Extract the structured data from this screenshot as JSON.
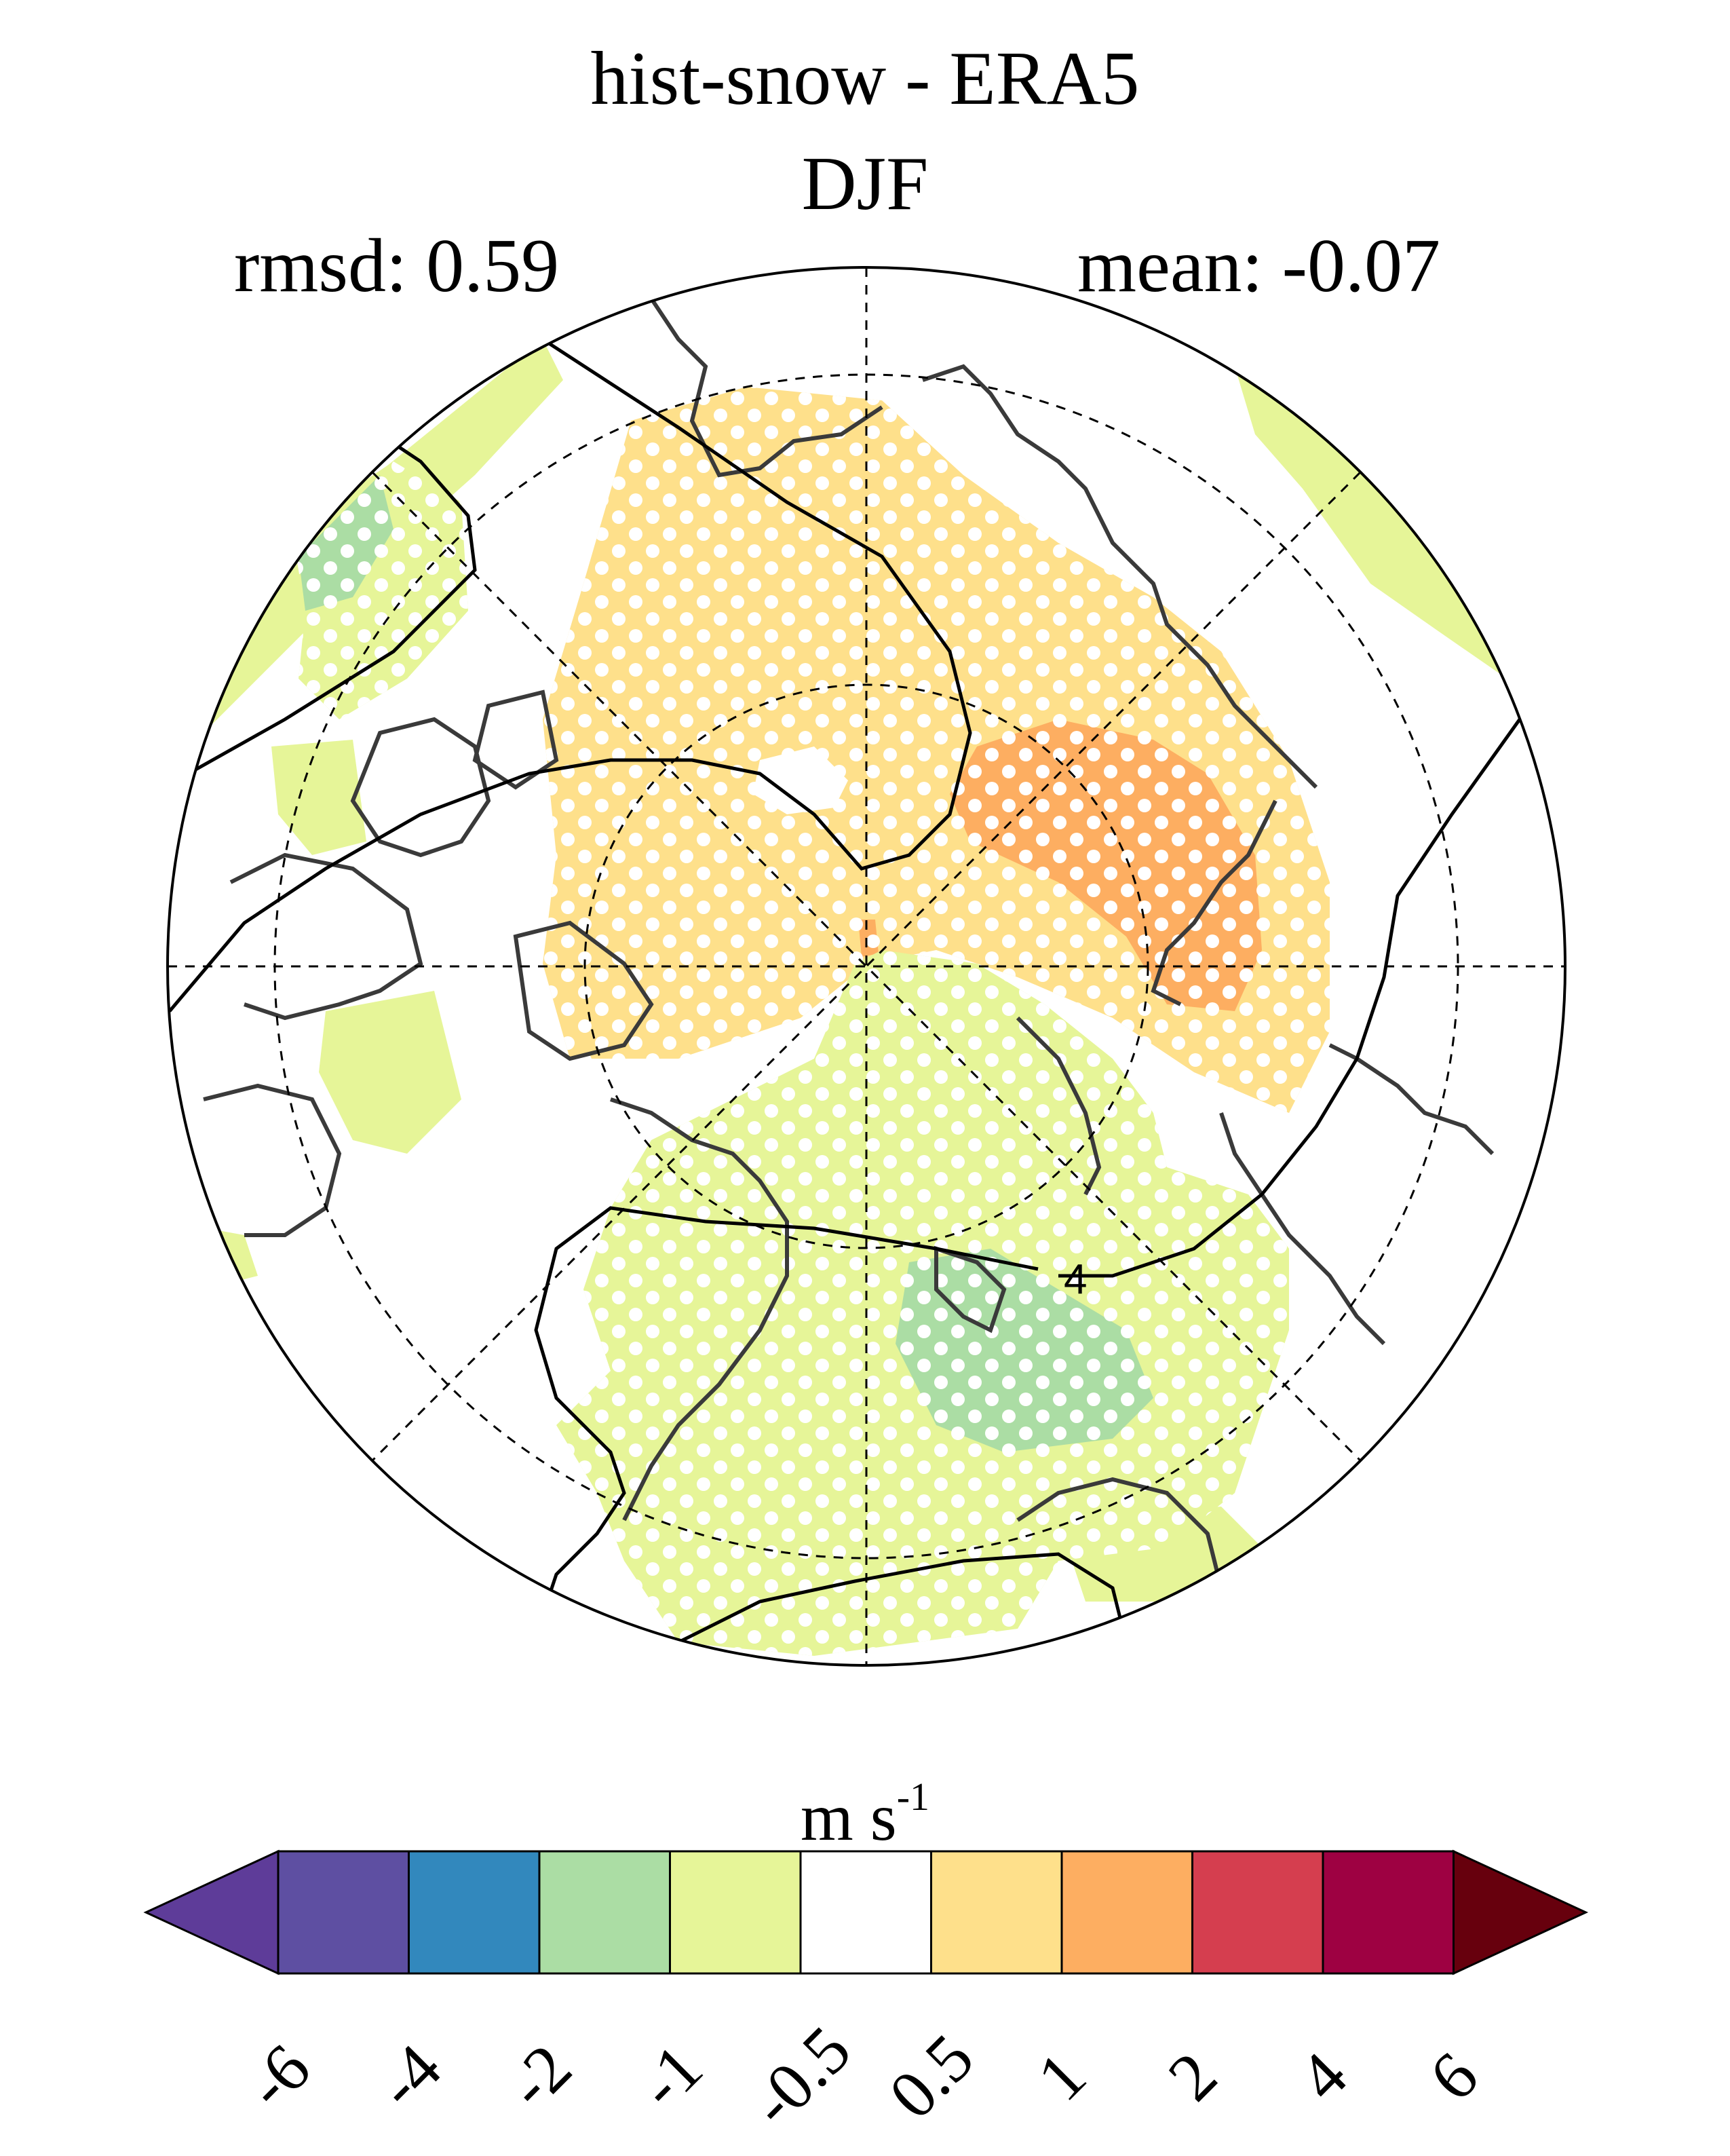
{
  "title": "hist-snow - ERA5",
  "season": "DJF",
  "stats": {
    "rmsd": "rmsd: 0.59",
    "mean": "mean: -0.07"
  },
  "contour_label": "4",
  "colorbar": {
    "unit_main": "m s",
    "unit_exp": "-1",
    "ticks": [
      "-6",
      "-4",
      "-2",
      "-1",
      "-0.5",
      "0.5",
      "1",
      "2",
      "4",
      "6"
    ],
    "colors": [
      "#5e3c99",
      "#5e4fa2",
      "#3288bd",
      "#abdda4",
      "#e6f598",
      "#ffffff",
      "#fee08b",
      "#fdae61",
      "#d53e4f",
      "#9e0142",
      "#67000d"
    ]
  },
  "colors": {
    "pos_light": "#fee08b",
    "pos_mid": "#fdae61",
    "neg_light": "#e6f598",
    "neg_mid": "#abdda4",
    "coast": "#3a3a3a"
  }
}
